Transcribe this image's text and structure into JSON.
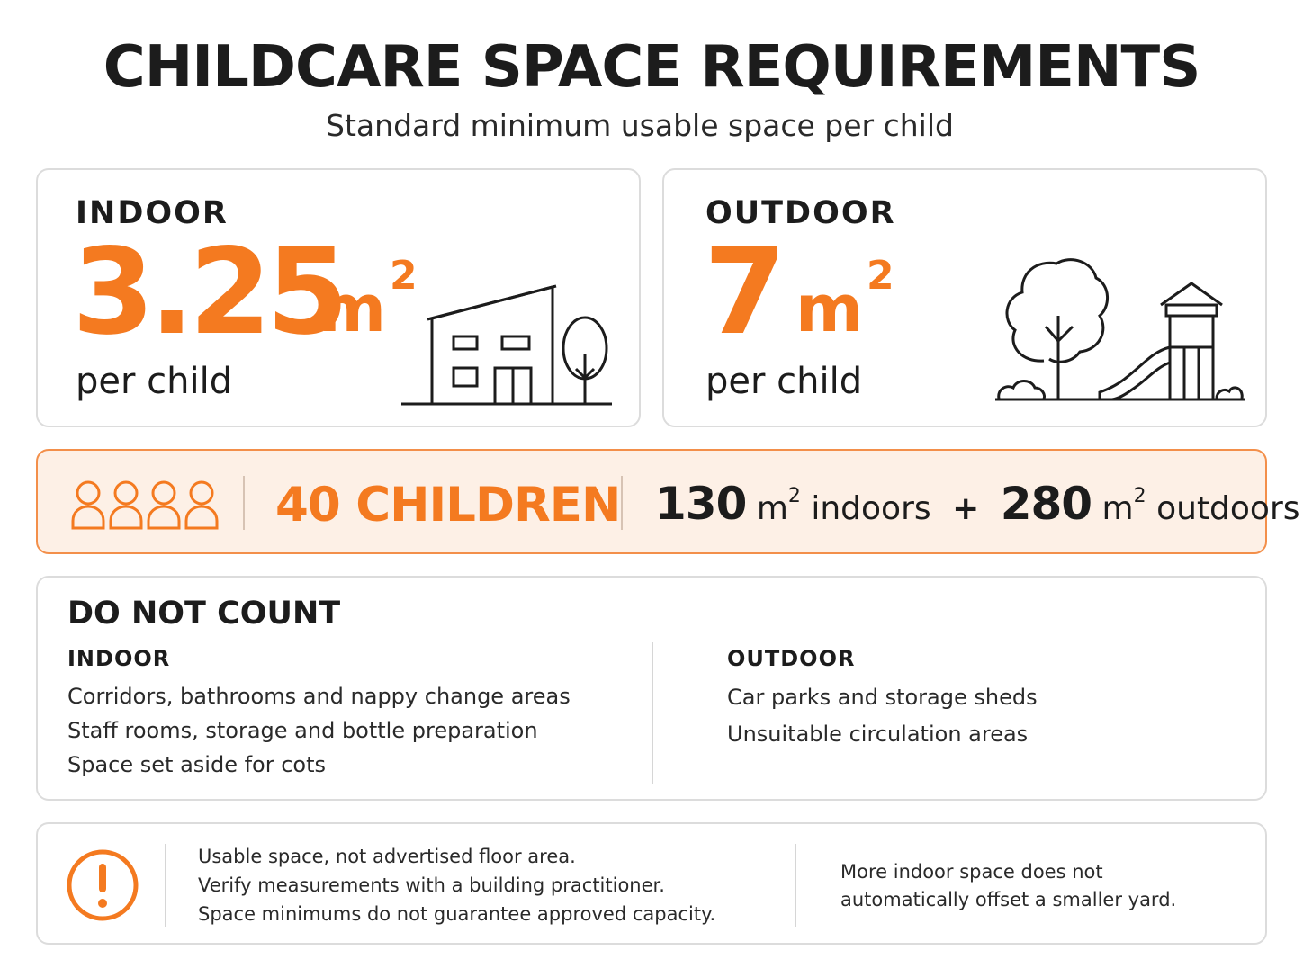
{
  "header": {
    "title": "CHILDCARE SPACE REQUIREMENTS",
    "subtitle": "Standard minimum usable space per child"
  },
  "indoor_card": {
    "label": "INDOOR",
    "value": "3.25",
    "unit": "m",
    "unit_power": "2",
    "per": "per child",
    "icon": "house-with-tree-icon"
  },
  "outdoor_card": {
    "label": "OUTDOOR",
    "value": "7",
    "unit": "m",
    "unit_power": "2",
    "per": "per child",
    "icon": "playground-tree-slide-icon"
  },
  "summary": {
    "icon": "four-children-icon",
    "children": "40 CHILDREN",
    "indoor_total": "130",
    "indoor_unit": "m",
    "indoor_power": "2",
    "indoor_word": "indoors",
    "plus": "+",
    "outdoor_total": "280",
    "outdoor_unit": "m",
    "outdoor_power": "2",
    "outdoor_word": "outdoors"
  },
  "do_not_count": {
    "title": "DO NOT COUNT",
    "indoor_title": "INDOOR",
    "indoor_items": [
      "Corridors, bathrooms and nappy change areas",
      "Staff rooms, storage and bottle preparation",
      "Space set aside for cots"
    ],
    "outdoor_title": "OUTDOOR",
    "outdoor_items": [
      "Car parks and storage sheds",
      "Unsuitable circulation areas"
    ]
  },
  "notes": {
    "icon": "exclamation-circle-icon",
    "items": [
      "Usable space, not advertised floor area.",
      "Verify measurements with a building practitioner.",
      "Space minimums do not guarantee approved capacity."
    ],
    "side_note": "More indoor space does not automatically offset a smaller yard."
  },
  "colors": {
    "accent": "#f47a20",
    "summary_bg": "#fdf0e6",
    "text": "#1c1c1c",
    "border": "#dcdcdc"
  }
}
